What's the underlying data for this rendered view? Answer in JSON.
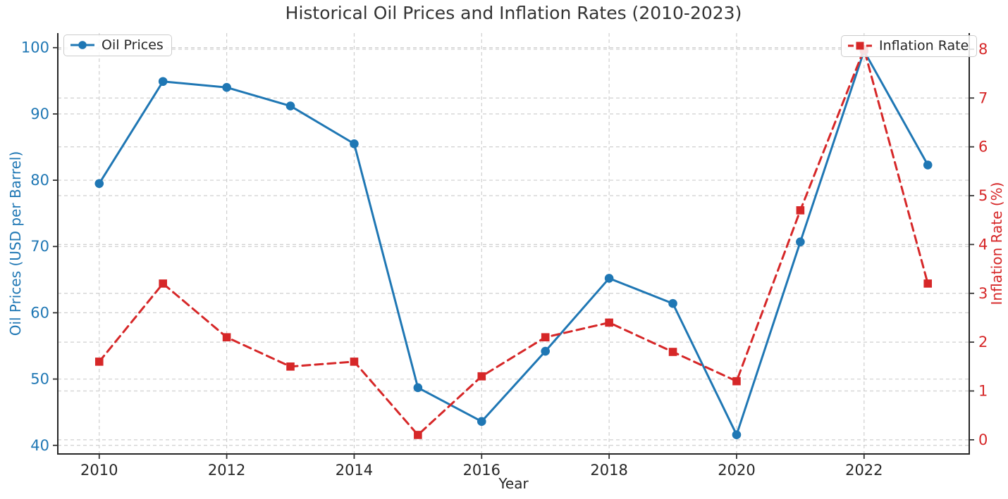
{
  "chart_data": {
    "type": "line",
    "title": "Historical Oil Prices and Inflation Rates (2010-2023)",
    "xlabel": "Year",
    "x": [
      2010,
      2011,
      2012,
      2013,
      2014,
      2015,
      2016,
      2017,
      2018,
      2019,
      2020,
      2021,
      2022,
      2023
    ],
    "x_ticks": [
      2010,
      2012,
      2014,
      2016,
      2018,
      2020,
      2022
    ],
    "x_range": [
      2009.35,
      2023.65
    ],
    "left_axis": {
      "label": "Oil Prices (USD per Barrel)",
      "ticks": [
        40,
        50,
        60,
        70,
        80,
        90,
        100
      ],
      "range": [
        38.7,
        102.2
      ],
      "color": "#1f77b4"
    },
    "right_axis": {
      "label": "Inflation Rate (%)",
      "ticks": [
        0,
        1,
        2,
        3,
        4,
        5,
        6,
        7,
        8
      ],
      "range": [
        -0.29,
        8.33
      ],
      "color": "#d62728"
    },
    "series": [
      {
        "name": "Oil Prices",
        "yaxis": "left",
        "color": "#1f77b4",
        "line_style": "solid",
        "marker": "circle",
        "values": [
          79.5,
          94.9,
          94.0,
          91.2,
          85.5,
          48.7,
          43.6,
          54.2,
          65.2,
          61.4,
          41.6,
          70.7,
          99.5,
          82.3
        ]
      },
      {
        "name": "Inflation Rate",
        "yaxis": "right",
        "color": "#d62728",
        "line_style": "dashed",
        "marker": "square",
        "values": [
          1.6,
          3.2,
          2.1,
          1.5,
          1.6,
          0.1,
          1.3,
          2.1,
          2.4,
          1.8,
          1.2,
          4.7,
          8.0,
          3.2
        ]
      }
    ],
    "grid": true,
    "legend_positions": [
      "upper left",
      "upper right"
    ],
    "style": {
      "grid_color": "#cfcfcf",
      "spine_color": "#262626",
      "tick_color": "#333333",
      "xtick_label_color": "#262626",
      "title_color": "#333333",
      "background": "#ffffff"
    }
  }
}
